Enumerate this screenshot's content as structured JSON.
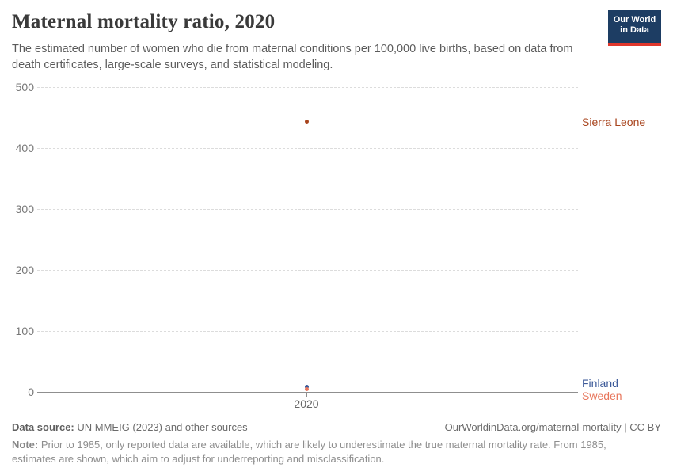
{
  "header": {
    "title": "Maternal mortality ratio, 2020",
    "subtitle": "The estimated number of women who die from maternal conditions per 100,000 live births, based on data from death certificates, large-scale surveys, and statistical modeling."
  },
  "logo": {
    "line1": "Our World",
    "line2": "in Data",
    "bg_color": "#1d3d63",
    "accent_color": "#e0372c"
  },
  "chart_data": {
    "type": "scatter",
    "title": "Maternal mortality ratio, 2020",
    "x": [
      2020
    ],
    "xticks": [
      "2020"
    ],
    "yticks": [
      "500",
      "400",
      "300",
      "200",
      "100",
      "0"
    ],
    "ylim": [
      0,
      500
    ],
    "grid": "horizontal-dashed",
    "legend_position": "right-entity-labels",
    "series": [
      {
        "name": "Sierra Leone",
        "x": 2020,
        "value": 443,
        "color": "#A8441D"
      },
      {
        "name": "Finland",
        "x": 2020,
        "value": 8,
        "color": "#3C5A99"
      },
      {
        "name": "Sweden",
        "x": 2020,
        "value": 5,
        "color": "#E8765C"
      }
    ]
  },
  "footer": {
    "datasource_label": "Data source:",
    "datasource_text": " UN MMEIG (2023) and other sources",
    "attribution": "OurWorldinData.org/maternal-mortality | CC BY",
    "note_label": "Note:",
    "note_text": " Prior to 1985, only reported data are available, which are likely to underestimate the true maternal mortality rate. From 1985, estimates are shown, which aim to adjust for underreporting and misclassification."
  }
}
